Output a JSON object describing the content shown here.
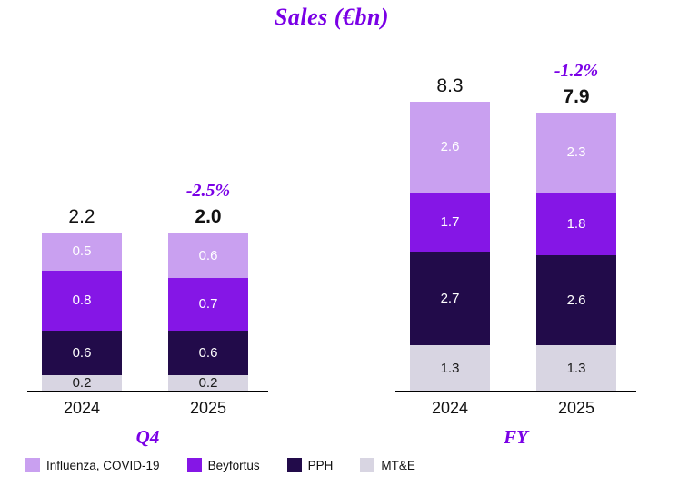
{
  "title": "Sales (€bn)",
  "colors": {
    "accent_purple": "#7a00e6",
    "axis_black": "#000000",
    "text_dark": "#111111"
  },
  "series_meta": [
    {
      "name": "Influenza, COVID-19",
      "color": "#c9a0f0",
      "text_color": "#ffffff"
    },
    {
      "name": "Beyfortus",
      "color": "#8516e6",
      "text_color": "#ffffff"
    },
    {
      "name": "PPH",
      "color": "#220b4a",
      "text_color": "#ffffff"
    },
    {
      "name": "MT&E",
      "color": "#d8d5e2",
      "text_color": "#1a1a1a"
    }
  ],
  "legend": [
    "Influenza, COVID-19",
    "Beyfortus",
    "PPH",
    "MT&E"
  ],
  "chart_data": [
    {
      "type": "bar",
      "stacked": true,
      "group_label": "Q4",
      "categories": [
        "2024",
        "2025"
      ],
      "totals": [
        2.2,
        2.0
      ],
      "bold_total_index": 1,
      "change_label": "-2.5%",
      "change_label_index": 1,
      "series_top_to_bottom": [
        {
          "name": "Influenza, COVID-19",
          "values": [
            0.5,
            0.6
          ]
        },
        {
          "name": "Beyfortus",
          "values": [
            0.8,
            0.7
          ]
        },
        {
          "name": "PPH",
          "values": [
            0.6,
            0.6
          ]
        },
        {
          "name": "MT&E",
          "values": [
            0.2,
            0.2
          ]
        }
      ]
    },
    {
      "type": "bar",
      "stacked": true,
      "group_label": "FY",
      "categories": [
        "2024",
        "2025"
      ],
      "totals": [
        8.3,
        7.9
      ],
      "bold_total_index": 1,
      "change_label": "-1.2%",
      "change_label_index": 1,
      "series_top_to_bottom": [
        {
          "name": "Influenza, COVID-19",
          "values": [
            2.6,
            2.3
          ]
        },
        {
          "name": "Beyfortus",
          "values": [
            1.7,
            1.8
          ]
        },
        {
          "name": "PPH",
          "values": [
            2.7,
            2.6
          ]
        },
        {
          "name": "MT&E",
          "values": [
            1.3,
            1.3
          ]
        }
      ]
    }
  ]
}
